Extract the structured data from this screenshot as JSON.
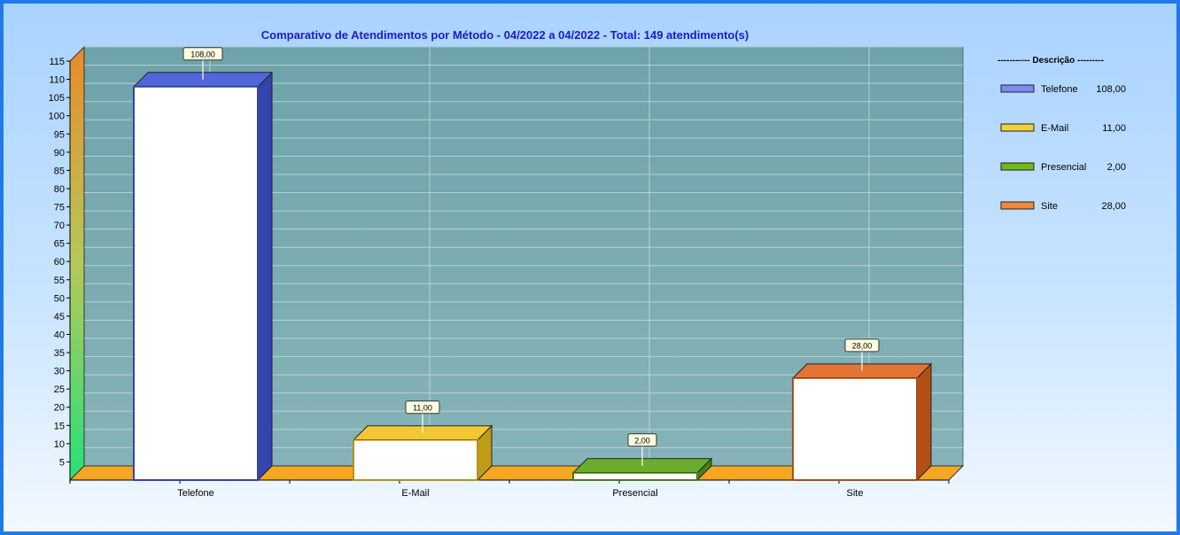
{
  "chart_data": {
    "type": "bar",
    "title": "Comparativo de Atendimentos por Método - 04/2022 a 04/2022 - Total: 149 atendimento(s)",
    "categories": [
      "Telefone",
      "E-Mail",
      "Presencial",
      "Site"
    ],
    "values": [
      108,
      11,
      2,
      28
    ],
    "value_labels": [
      "108,00",
      "11,00",
      "2,00",
      "28,00"
    ],
    "ylim": [
      0,
      115
    ],
    "yticks": [
      "5",
      "10",
      "15",
      "20",
      "25",
      "30",
      "35",
      "40",
      "45",
      "50",
      "55",
      "60",
      "65",
      "70",
      "75",
      "80",
      "85",
      "90",
      "95",
      "100",
      "105",
      "110",
      "115"
    ],
    "xlabel": "",
    "ylabel": "",
    "grid": true,
    "legend": {
      "position": "right",
      "header": "----------- Descrição ---------",
      "entries": [
        {
          "label": "Telefone",
          "value": "108,00"
        },
        {
          "label": "E-Mail",
          "value": "11,00"
        },
        {
          "label": "Presencial",
          "value": "2,00"
        },
        {
          "label": "Site",
          "value": "28,00"
        }
      ]
    }
  },
  "colors": {
    "bars": [
      "#3f55d8",
      "#efc21d",
      "#5aa316",
      "#e0641c"
    ],
    "legend_swatches": [
      "#7b8bf0",
      "#f3d23a",
      "#6fb81f",
      "#f08a3c"
    ],
    "plot_bg": "#75a9b0",
    "floor": "#f5a623",
    "title": "#1a1ad0"
  }
}
